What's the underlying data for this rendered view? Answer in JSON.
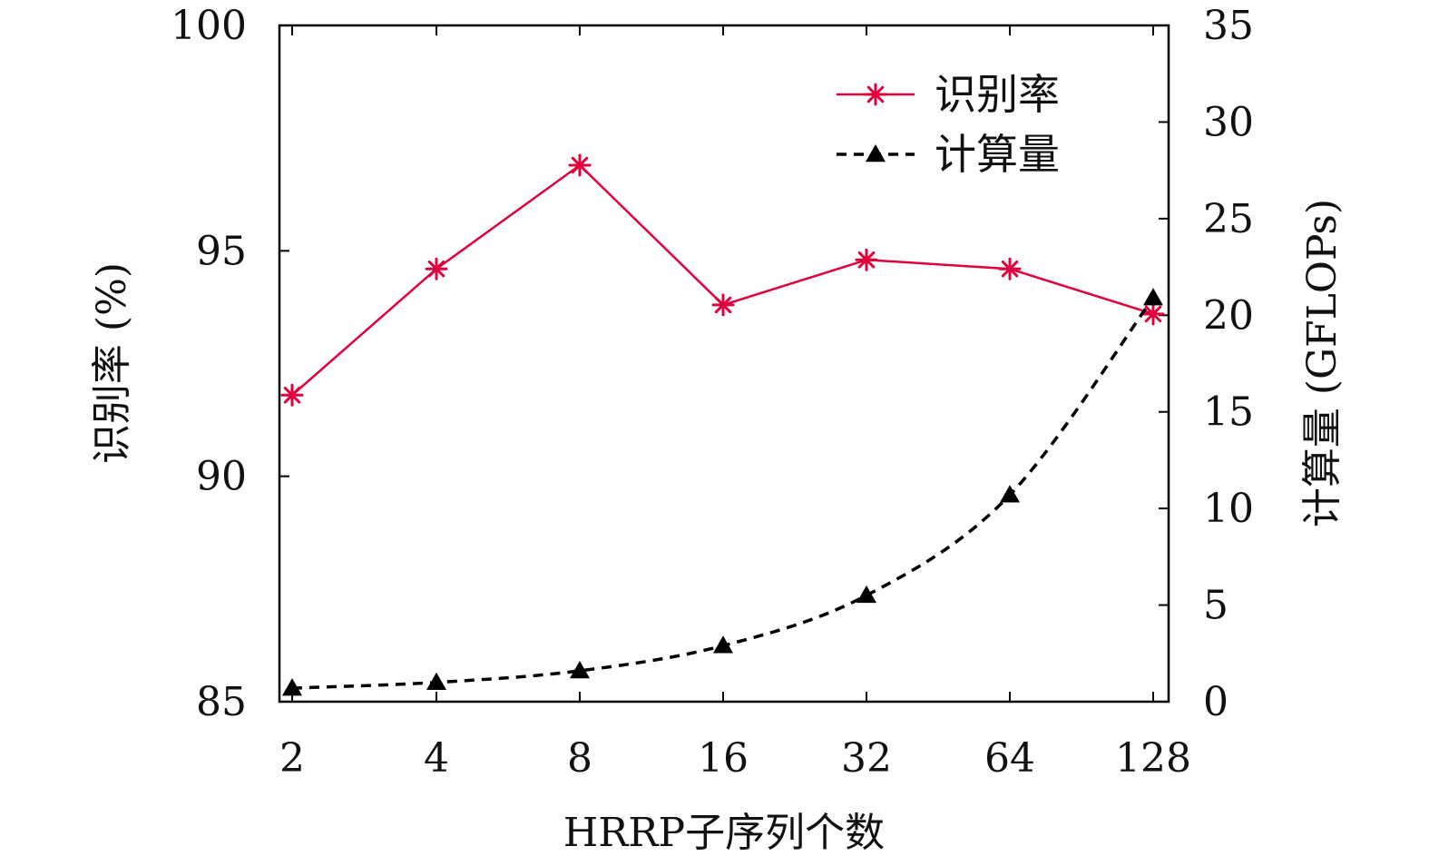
{
  "chart_data": {
    "type": "line",
    "categories": [
      "2",
      "4",
      "8",
      "16",
      "32",
      "64",
      "128"
    ],
    "xlabel": "HRRP子序列个数",
    "ylabel_left": "识别率 (%)",
    "ylabel_right": "计算量 (GFLOPs)",
    "ylim_left": [
      85,
      100
    ],
    "yticks_left": [
      "85",
      "90",
      "95",
      "100"
    ],
    "ylim_right": [
      0,
      35
    ],
    "yticks_right": [
      "0",
      "5",
      "10",
      "15",
      "20",
      "25",
      "30",
      "35"
    ],
    "grid": false,
    "legend_position": "top-right",
    "series": [
      {
        "name": "识别率",
        "axis": "left",
        "color": "#e0003c",
        "marker": "asterisk",
        "line_style": "solid",
        "values": [
          91.8,
          94.6,
          96.9,
          93.8,
          94.8,
          94.6,
          93.6
        ]
      },
      {
        "name": "计算量",
        "axis": "right",
        "color": "#000000",
        "marker": "triangle",
        "line_style": "dashed",
        "values": [
          0.7,
          1.0,
          1.6,
          2.9,
          5.5,
          10.7,
          20.9
        ]
      }
    ]
  }
}
